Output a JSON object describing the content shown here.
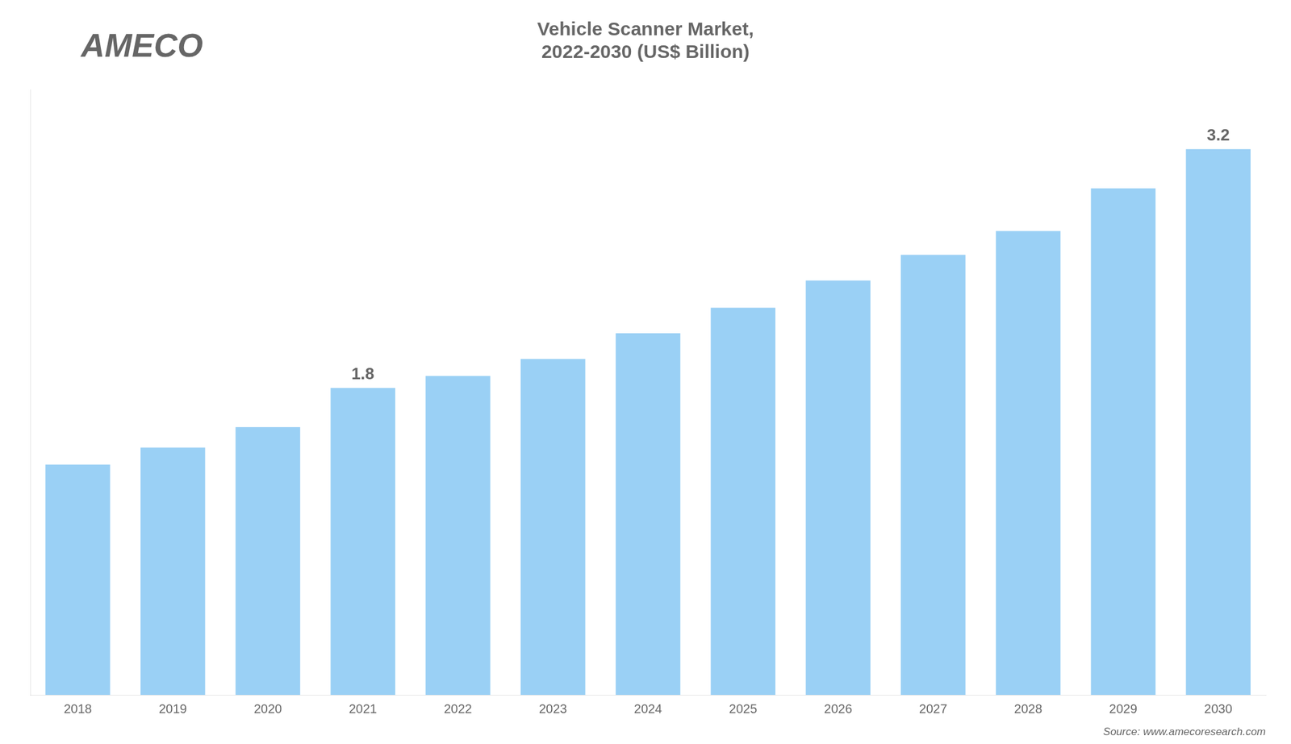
{
  "chart_data": {
    "type": "bar",
    "title": [
      "Vehicle Scanner Market,",
      "2022-2030 (US$ Billion)"
    ],
    "logo": "AMECO",
    "source": "Source: www.amecoresearch.com",
    "categories": [
      "2018",
      "2019",
      "2020",
      "2021",
      "2022",
      "2023",
      "2024",
      "2025",
      "2026",
      "2027",
      "2028",
      "2029",
      "2030"
    ],
    "values": [
      1.35,
      1.45,
      1.57,
      1.8,
      1.87,
      1.97,
      2.12,
      2.27,
      2.43,
      2.58,
      2.72,
      2.97,
      3.2
    ],
    "annotations": [
      {
        "category": "2021",
        "text": "1.8"
      },
      {
        "category": "2030",
        "text": "3.2"
      }
    ],
    "ylim": [
      0,
      3.55
    ],
    "grid": false,
    "tick_labels": "x"
  }
}
